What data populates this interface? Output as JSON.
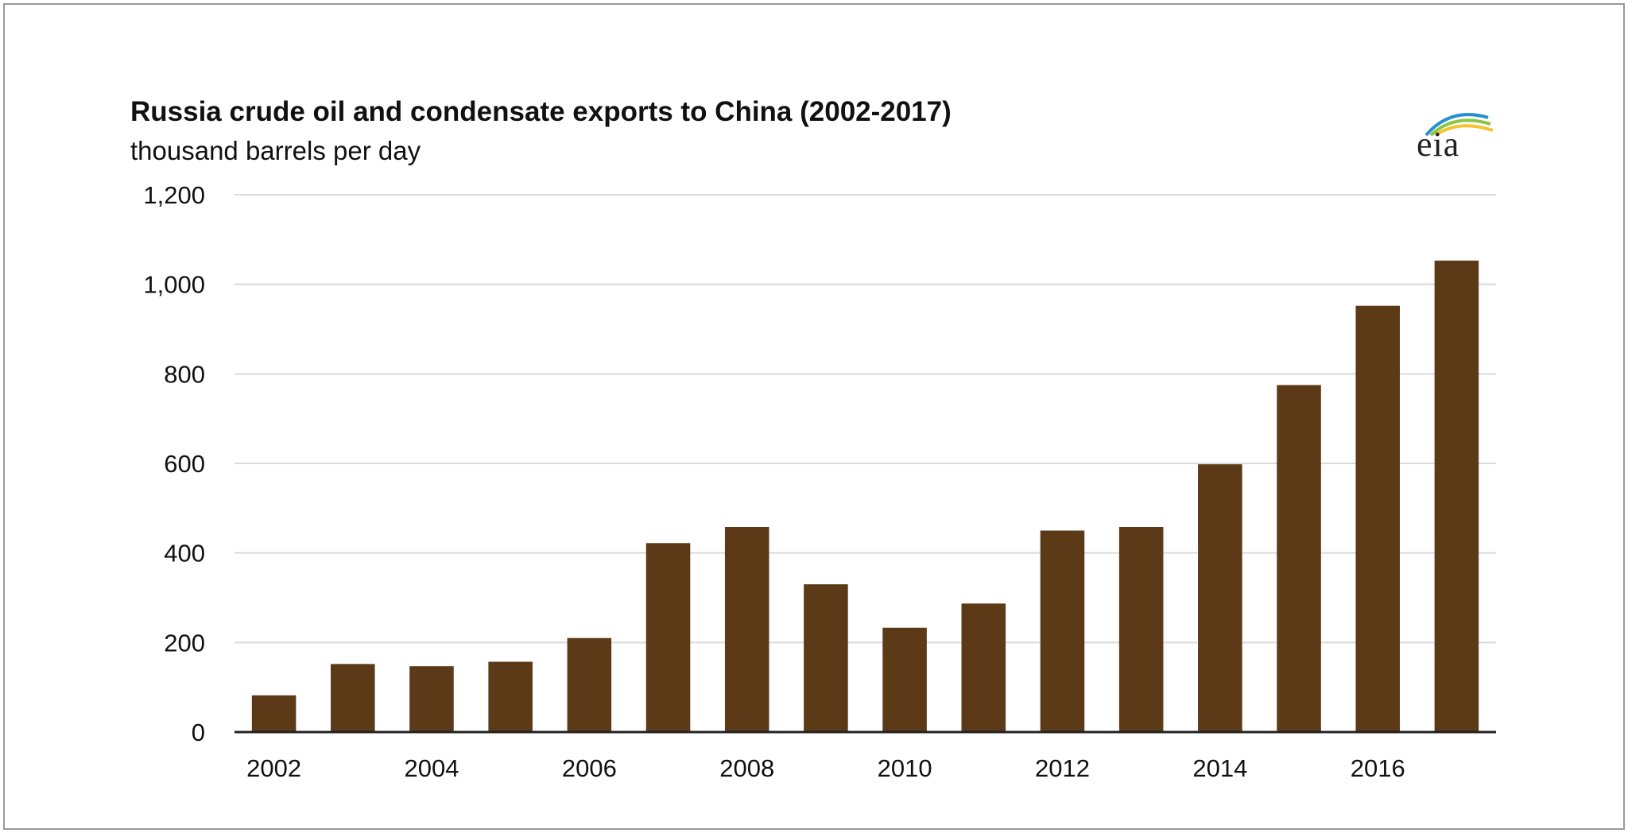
{
  "chart_data": {
    "type": "bar",
    "title": "Russia crude oil and condensate exports to China (2002-2017)",
    "subtitle": "thousand barrels per day",
    "xlabel": "",
    "ylabel": "",
    "categories": [
      "2002",
      "2003",
      "2004",
      "2005",
      "2006",
      "2007",
      "2008",
      "2009",
      "2010",
      "2011",
      "2012",
      "2013",
      "2014",
      "2015",
      "2016",
      "2017"
    ],
    "x_tick_labels": [
      "2002",
      "2004",
      "2006",
      "2008",
      "2010",
      "2012",
      "2014",
      "2016"
    ],
    "values": [
      82,
      152,
      147,
      157,
      210,
      422,
      458,
      330,
      233,
      287,
      450,
      458,
      598,
      775,
      952,
      1053
    ],
    "ylim": [
      0,
      1200
    ],
    "y_ticks": [
      0,
      200,
      400,
      600,
      800,
      1000,
      1200
    ],
    "y_tick_labels": [
      "0",
      "200",
      "400",
      "600",
      "800",
      "1,000",
      "1,200"
    ],
    "grid": true,
    "legend": "none",
    "bar_color": "#5c3a17",
    "grid_color": "#d9d9d9",
    "axis_color": "#222222"
  },
  "logo": {
    "text": "eia",
    "arc_colors": [
      "#2a8fd0",
      "#8bc53f",
      "#f4c430"
    ]
  }
}
